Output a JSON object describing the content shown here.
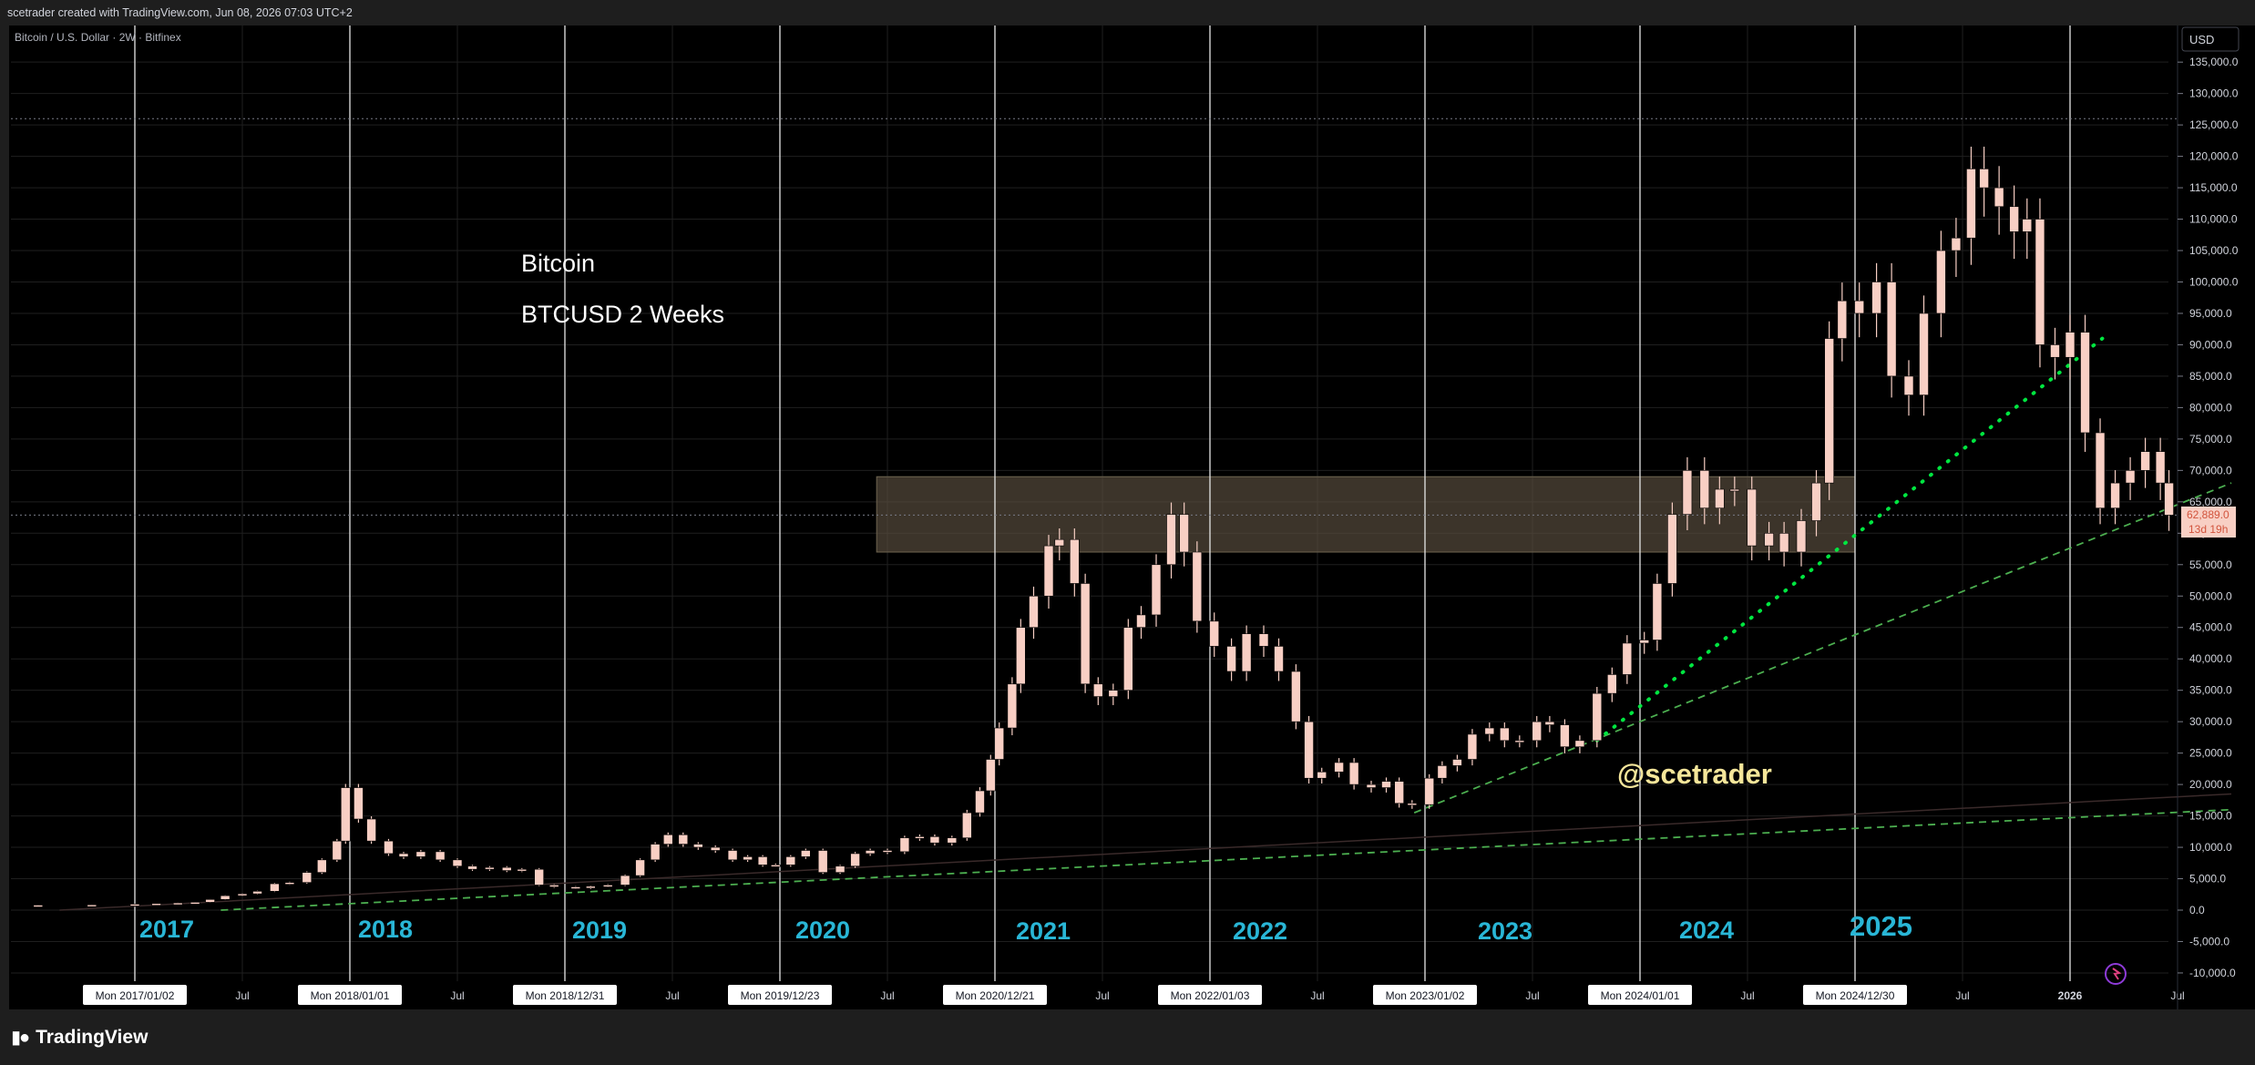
{
  "header": {
    "caption": "scetrader created with TradingView.com, Jun 08, 2026 07:03 UTC+2"
  },
  "symbol_line": "Bitcoin / U.S. Dollar · 2W · Bitfinex",
  "currency_button": "USD",
  "annotations": {
    "title": "Bitcoin",
    "subtitle": "BTCUSD 2 Weeks",
    "watermark": "@scetrader"
  },
  "year_labels": [
    "2017",
    "2018",
    "2019",
    "2020",
    "2021",
    "2022",
    "2023",
    "2024",
    "2025"
  ],
  "time_axis": {
    "labels": [
      {
        "t": 2017.0,
        "text": "Mon 2017/01/02",
        "boxed": true
      },
      {
        "t": 2017.5,
        "text": "Jul",
        "boxed": false
      },
      {
        "t": 2018.0,
        "text": "Mon 2018/01/01",
        "boxed": true
      },
      {
        "t": 2018.5,
        "text": "Jul",
        "boxed": false
      },
      {
        "t": 2019.0,
        "text": "Mon 2018/12/31",
        "boxed": true
      },
      {
        "t": 2019.5,
        "text": "Jul",
        "boxed": false
      },
      {
        "t": 2020.0,
        "text": "Mon 2019/12/23",
        "boxed": true
      },
      {
        "t": 2020.5,
        "text": "Jul",
        "boxed": false
      },
      {
        "t": 2021.0,
        "text": "Mon 2020/12/21",
        "boxed": true
      },
      {
        "t": 2021.5,
        "text": "Jul",
        "boxed": false
      },
      {
        "t": 2022.0,
        "text": "Mon 2022/01/03",
        "boxed": true
      },
      {
        "t": 2022.5,
        "text": "Jul",
        "boxed": false
      },
      {
        "t": 2023.0,
        "text": "Mon 2023/01/02",
        "boxed": true
      },
      {
        "t": 2023.5,
        "text": "Jul",
        "boxed": false
      },
      {
        "t": 2024.0,
        "text": "Mon 2024/01/01",
        "boxed": true
      },
      {
        "t": 2024.5,
        "text": "Jul",
        "boxed": false
      },
      {
        "t": 2025.0,
        "text": "Mon 2024/12/30",
        "boxed": true
      },
      {
        "t": 2025.5,
        "text": "Jul",
        "boxed": false
      },
      {
        "t": 2026.0,
        "text": "2026",
        "boxed": false
      },
      {
        "t": 2026.5,
        "text": "Jul",
        "boxed": false
      }
    ]
  },
  "price_axis": {
    "ticks": [
      "-10,000.0",
      "-5,000.0",
      "0.0",
      "5,000.0",
      "10,000.0",
      "15,000.0",
      "20,000.0",
      "25,000.0",
      "30,000.0",
      "35,000.0",
      "40,000.0",
      "45,000.0",
      "50,000.0",
      "55,000.0",
      "60,000.0",
      "65,000.0",
      "70,000.0",
      "75,000.0",
      "80,000.0",
      "85,000.0",
      "90,000.0",
      "95,000.0",
      "100,000.0",
      "105,000.0",
      "110,000.0",
      "115,000.0",
      "120,000.0",
      "125,000.0",
      "130,000.0",
      "135,000.0"
    ],
    "last_price": "62,889.0",
    "countdown": "13d 19h"
  },
  "footer": {
    "brand": "TradingView"
  },
  "colors": {
    "background": "#000000",
    "bars": "#f8cfc4",
    "trend": "#4caf50",
    "dotted_trend": "#00e640",
    "zone": "#5c5040",
    "year_label": "#29b6d6",
    "title_text": "#ffffff",
    "watermark": "#f5e69a"
  },
  "chart_data": {
    "type": "ohlc",
    "interval": "2 weeks",
    "symbol": "BTCUSD",
    "x_range": [
      2016.65,
      2026.75
    ],
    "ylim": [
      -10000,
      135000
    ],
    "price_scale": "linear",
    "grid": true,
    "zone": {
      "x": [
        2020.45,
        2025.0
      ],
      "y": [
        57000,
        69000
      ]
    },
    "cycle_lines_at": [
      2017.0,
      2018.0,
      2019.0,
      2020.0,
      2021.0,
      2022.0,
      2023.0,
      2024.0,
      2025.0,
      2026.0
    ],
    "horizontal_dotted_levels": [
      126000,
      62889
    ],
    "trendlines": [
      {
        "style": "dashed",
        "from": [
          2017.4,
          0
        ],
        "to": [
          2026.75,
          16000
        ]
      },
      {
        "style": "dashed",
        "from": [
          2022.95,
          15500
        ],
        "to": [
          2026.75,
          68000
        ]
      },
      {
        "style": "dotted",
        "from": [
          2023.8,
          27000
        ],
        "to": [
          2026.15,
          91000
        ]
      },
      {
        "style": "solid-faint",
        "from": [
          2016.65,
          0
        ],
        "to": [
          2026.75,
          18500
        ]
      }
    ],
    "bars_series": [
      [
        2016.55,
        800
      ],
      [
        2016.8,
        850
      ],
      [
        2017.0,
        950
      ],
      [
        2017.1,
        1050
      ],
      [
        2017.2,
        1150
      ],
      [
        2017.28,
        1250
      ],
      [
        2017.35,
        1700
      ],
      [
        2017.42,
        2300
      ],
      [
        2017.5,
        2600
      ],
      [
        2017.57,
        3000
      ],
      [
        2017.65,
        4200
      ],
      [
        2017.72,
        4400
      ],
      [
        2017.8,
        6000
      ],
      [
        2017.87,
        8000
      ],
      [
        2017.94,
        11000
      ],
      [
        2017.98,
        19500
      ],
      [
        2018.04,
        14500
      ],
      [
        2018.1,
        11000
      ],
      [
        2018.18,
        9000
      ],
      [
        2018.25,
        8500
      ],
      [
        2018.33,
        9300
      ],
      [
        2018.42,
        8000
      ],
      [
        2018.5,
        7000
      ],
      [
        2018.57,
        6500
      ],
      [
        2018.65,
        6800
      ],
      [
        2018.73,
        6300
      ],
      [
        2018.8,
        6500
      ],
      [
        2018.88,
        4000
      ],
      [
        2018.95,
        3700
      ],
      [
        2019.05,
        3500
      ],
      [
        2019.12,
        3800
      ],
      [
        2019.2,
        4000
      ],
      [
        2019.28,
        5500
      ],
      [
        2019.35,
        8000
      ],
      [
        2019.42,
        10500
      ],
      [
        2019.48,
        12000
      ],
      [
        2019.55,
        10500
      ],
      [
        2019.62,
        10000
      ],
      [
        2019.7,
        9500
      ],
      [
        2019.78,
        8000
      ],
      [
        2019.85,
        8500
      ],
      [
        2019.92,
        7200
      ],
      [
        2019.98,
        7200
      ],
      [
        2020.05,
        8500
      ],
      [
        2020.12,
        9500
      ],
      [
        2020.2,
        6000
      ],
      [
        2020.28,
        7000
      ],
      [
        2020.35,
        9000
      ],
      [
        2020.42,
        9500
      ],
      [
        2020.5,
        9300
      ],
      [
        2020.58,
        11500
      ],
      [
        2020.65,
        11700
      ],
      [
        2020.72,
        10700
      ],
      [
        2020.8,
        11500
      ],
      [
        2020.87,
        15500
      ],
      [
        2020.93,
        19000
      ],
      [
        2020.98,
        24000
      ],
      [
        2021.02,
        29000
      ],
      [
        2021.08,
        36000
      ],
      [
        2021.12,
        45000
      ],
      [
        2021.18,
        50000
      ],
      [
        2021.25,
        58000
      ],
      [
        2021.3,
        59000
      ],
      [
        2021.37,
        52000
      ],
      [
        2021.42,
        36000
      ],
      [
        2021.48,
        34000
      ],
      [
        2021.55,
        35000
      ],
      [
        2021.62,
        45000
      ],
      [
        2021.68,
        47000
      ],
      [
        2021.75,
        55000
      ],
      [
        2021.82,
        63000
      ],
      [
        2021.88,
        57000
      ],
      [
        2021.94,
        46000
      ],
      [
        2022.02,
        42000
      ],
      [
        2022.1,
        38000
      ],
      [
        2022.17,
        44000
      ],
      [
        2022.25,
        42000
      ],
      [
        2022.32,
        38000
      ],
      [
        2022.4,
        30000
      ],
      [
        2022.46,
        21000
      ],
      [
        2022.52,
        22000
      ],
      [
        2022.6,
        23500
      ],
      [
        2022.67,
        20000
      ],
      [
        2022.75,
        19500
      ],
      [
        2022.82,
        20500
      ],
      [
        2022.88,
        17000
      ],
      [
        2022.94,
        16800
      ],
      [
        2023.02,
        21000
      ],
      [
        2023.08,
        23000
      ],
      [
        2023.15,
        24000
      ],
      [
        2023.22,
        28000
      ],
      [
        2023.3,
        29000
      ],
      [
        2023.37,
        27000
      ],
      [
        2023.44,
        27000
      ],
      [
        2023.52,
        30000
      ],
      [
        2023.58,
        29500
      ],
      [
        2023.65,
        26000
      ],
      [
        2023.72,
        27000
      ],
      [
        2023.8,
        34500
      ],
      [
        2023.87,
        37500
      ],
      [
        2023.94,
        42500
      ],
      [
        2024.02,
        43000
      ],
      [
        2024.08,
        52000
      ],
      [
        2024.15,
        63000
      ],
      [
        2024.22,
        70000
      ],
      [
        2024.3,
        64000
      ],
      [
        2024.37,
        67000
      ],
      [
        2024.44,
        67000
      ],
      [
        2024.52,
        58000
      ],
      [
        2024.6,
        60000
      ],
      [
        2024.67,
        57000
      ],
      [
        2024.75,
        62000
      ],
      [
        2024.82,
        68000
      ],
      [
        2024.88,
        91000
      ],
      [
        2024.94,
        97000
      ],
      [
        2025.02,
        95000
      ],
      [
        2025.1,
        100000
      ],
      [
        2025.17,
        85000
      ],
      [
        2025.25,
        82000
      ],
      [
        2025.32,
        95000
      ],
      [
        2025.4,
        105000
      ],
      [
        2025.47,
        107000
      ],
      [
        2025.54,
        118000
      ],
      [
        2025.6,
        115000
      ],
      [
        2025.67,
        112000
      ],
      [
        2025.74,
        108000
      ],
      [
        2025.8,
        110000
      ],
      [
        2025.86,
        90000
      ],
      [
        2025.93,
        88000
      ],
      [
        2026.0,
        92000
      ],
      [
        2026.07,
        76000
      ],
      [
        2026.14,
        64000
      ],
      [
        2026.21,
        68000
      ],
      [
        2026.28,
        70000
      ],
      [
        2026.35,
        73000
      ],
      [
        2026.42,
        68000
      ],
      [
        2026.46,
        62889
      ]
    ]
  }
}
